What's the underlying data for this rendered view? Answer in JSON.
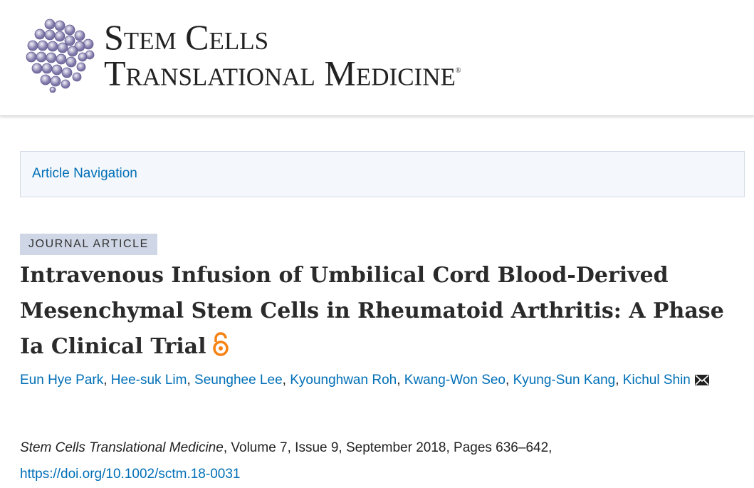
{
  "header": {
    "logo_line1": "Stem Cells",
    "logo_line2": "Translational Medicine",
    "logo_mark": "®"
  },
  "nav": {
    "label": "Article Navigation"
  },
  "article": {
    "type_badge": "JOURNAL ARTICLE",
    "title": "Intravenous Infusion of Umbilical Cord Blood-Derived Mesenchymal Stem Cells in Rheumatoid Arthritis: A Phase Ia Clinical Trial",
    "open_access_icon": "open-access-lock-icon",
    "authors": [
      "Eun Hye Park",
      "Hee-suk Lim",
      "Seunghee Lee",
      "Kyounghwan Roh",
      "Kwang-Won Seo",
      "Kyung-Sun Kang",
      "Kichul Shin"
    ],
    "separator": ", ",
    "corresponding_icon": "envelope-icon",
    "citation": {
      "journal": "Stem Cells Translational Medicine",
      "details": ", Volume 7, Issue 9, September 2018, Pages 636–642,",
      "doi": "https://doi.org/10.1002/sctm.18-0031"
    }
  },
  "colors": {
    "link": "#006fb7",
    "open_access": "#f68212",
    "badge_bg": "#cfd6e6"
  }
}
